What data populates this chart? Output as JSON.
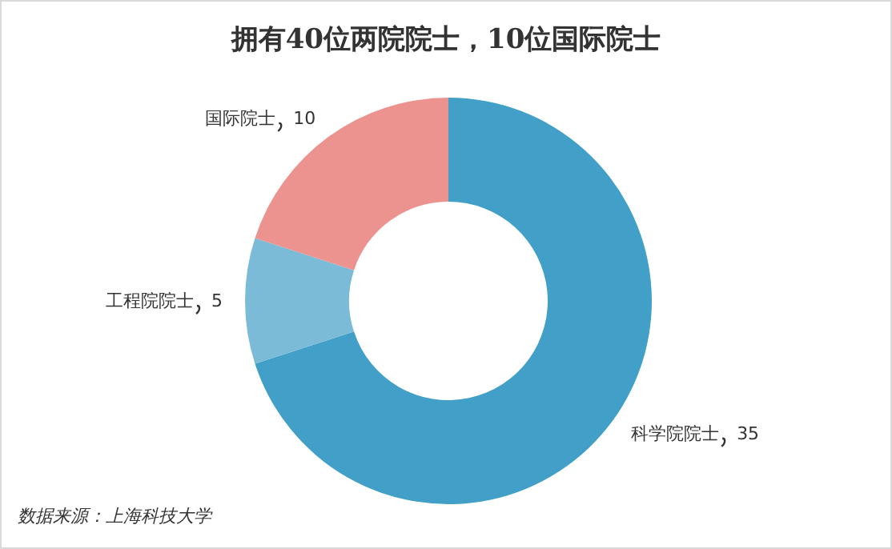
{
  "chart_data": {
    "type": "donut",
    "title": "拥有40位两院院士，10位国际院士",
    "categories": [
      "科学院院士",
      "工程院院士",
      "国际院士"
    ],
    "values": [
      35,
      5,
      10
    ],
    "colors": [
      "#429fc7",
      "#7bbbd8",
      "#ed938f"
    ],
    "data_labels": true,
    "annotations": [
      "数据来源：上海科技大学"
    ]
  }
}
